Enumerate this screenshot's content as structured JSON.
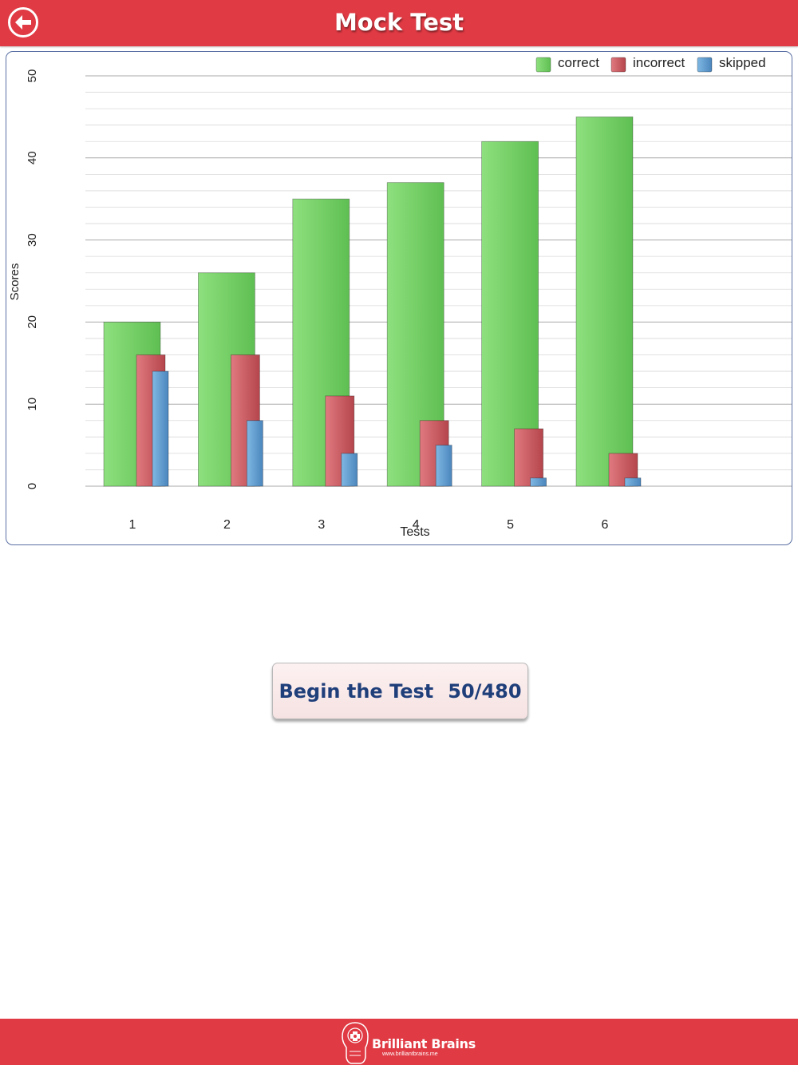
{
  "header": {
    "title": "Mock Test",
    "back_icon": "arrow-left-circle-icon",
    "color": "#e03a44"
  },
  "chart_data": {
    "type": "bar",
    "title": "",
    "xlabel": "Tests",
    "ylabel": "Scores",
    "ylim": [
      0,
      50
    ],
    "y_ticks": [
      0,
      10,
      20,
      30,
      40,
      50
    ],
    "grid": true,
    "legend_position": "top-right",
    "categories": [
      "1",
      "2",
      "3",
      "4",
      "5",
      "6"
    ],
    "series": [
      {
        "name": "correct",
        "color": "#6fcf63",
        "values": [
          20,
          26,
          35,
          37,
          42,
          45
        ]
      },
      {
        "name": "incorrect",
        "color": "#cf555c",
        "values": [
          16,
          16,
          11,
          8,
          7,
          4
        ]
      },
      {
        "name": "skipped",
        "color": "#5a9bd0",
        "values": [
          14,
          8,
          4,
          5,
          1,
          1
        ]
      }
    ]
  },
  "begin_button": {
    "label": "Begin the Test",
    "progress": "50/480"
  },
  "footer": {
    "brand": "Brilliant Brains",
    "url": "www.brilliantbrains.me",
    "logo_icon": "brain-head-icon"
  }
}
